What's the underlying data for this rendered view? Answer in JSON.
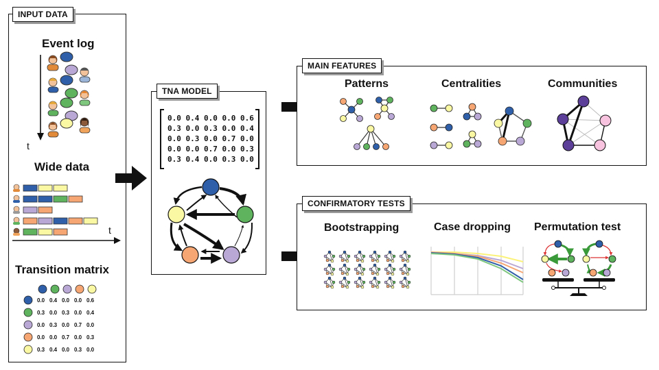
{
  "palette": {
    "blue": "#2e5fa8",
    "green": "#5fb35f",
    "purple": "#b9a7d6",
    "orange": "#f5a673",
    "yellow": "#fbf8a3",
    "dark_purple": "#5b3f98",
    "pink": "#f7c3de"
  },
  "input": {
    "tag": "INPUT DATA",
    "event_log": {
      "title": "Event log",
      "time_label": "t"
    },
    "wide_data": {
      "title": "Wide data",
      "time_label": "t"
    },
    "transition_matrix": {
      "title": "Transition matrix",
      "rows": [
        [
          "0.0",
          "0.4",
          "0.0",
          "0.0",
          "0.6"
        ],
        [
          "0.3",
          "0.0",
          "0.3",
          "0.0",
          "0.4"
        ],
        [
          "0.0",
          "0.3",
          "0.0",
          "0.7",
          "0.0"
        ],
        [
          "0.0",
          "0.0",
          "0.7",
          "0.0",
          "0.3"
        ],
        [
          "0.3",
          "0.4",
          "0.0",
          "0.3",
          "0.0"
        ]
      ]
    }
  },
  "model": {
    "tag": "TNA MODEL",
    "matrix": [
      "0.0 0.4 0.0 0.0 0.6",
      "0.3 0.0 0.3 0.0 0.4",
      "0.0 0.3 0.0 0.7 0.0",
      "0.0 0.0 0.7 0.0 0.3",
      "0.3 0.4 0.0 0.3 0.0"
    ]
  },
  "features": {
    "tag": "MAIN FEATURES",
    "items": [
      "Patterns",
      "Centralities",
      "Communities"
    ]
  },
  "tests": {
    "tag": "CONFIRMATORY TESTS",
    "items": [
      "Bootstrapping",
      "Case dropping",
      "Permutation test"
    ]
  }
}
